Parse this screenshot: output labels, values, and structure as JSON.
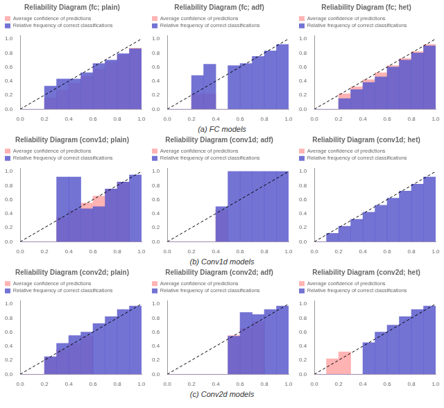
{
  "chart_data": [
    {
      "type": "bar",
      "title": "Reliability Diagram (fc; plain)",
      "bins": [
        0.0,
        0.1,
        0.2,
        0.3,
        0.4,
        0.5,
        0.6,
        0.7,
        0.8,
        0.9,
        1.0
      ],
      "series": [
        {
          "name": "Average confidence of predictions",
          "color": "#ffb3b3",
          "values": [
            0.0,
            0.0,
            0.16,
            0.27,
            0.37,
            0.47,
            0.57,
            0.67,
            0.77,
            0.87
          ]
        },
        {
          "name": "Relative frequency of correct classifications",
          "color": "#5b5bcc",
          "values": [
            0.0,
            0.0,
            0.33,
            0.43,
            0.43,
            0.52,
            0.65,
            0.7,
            0.79,
            0.86
          ]
        }
      ],
      "xlim": [
        0.0,
        1.0
      ],
      "ylim": [
        0.0,
        1.05
      ],
      "xticks": [
        {
          "value": 0.0,
          "label": "0.0"
        },
        0.2,
        0.4,
        0.6,
        0.8,
        {
          "value": 1.0,
          "label": "1.0"
        }
      ],
      "yticks": [
        {
          "value": 0.0,
          "label": "0.0"
        },
        0.2,
        0.4,
        0.6,
        0.8,
        {
          "value": 1.0,
          "label": "1.0"
        }
      ],
      "grid": false,
      "legend": "upper left"
    },
    {
      "type": "bar",
      "title": "Reliability Diagram (fc; adf)",
      "bins": [
        0.0,
        0.1,
        0.2,
        0.3,
        0.4,
        0.5,
        0.6,
        0.7,
        0.8,
        0.9,
        1.0
      ],
      "series": [
        {
          "name": "Average confidence of predictions",
          "color": "#ffb3b3",
          "values": [
            0.0,
            0.0,
            0.22,
            0.22,
            0.0,
            0.0,
            0.0,
            0.0,
            0.0,
            0.0
          ]
        },
        {
          "name": "Relative frequency of correct classifications",
          "color": "#5b5bcc",
          "values": [
            0.0,
            0.0,
            0.48,
            0.64,
            0.0,
            0.62,
            0.65,
            0.75,
            0.83,
            0.92
          ]
        }
      ],
      "xlim": [
        0.0,
        1.0
      ],
      "ylim": [
        0.0,
        1.05
      ],
      "xticks": [
        {
          "value": 0.0,
          "label": "0.0"
        },
        0.2,
        0.4,
        0.6,
        0.8,
        {
          "value": 1.0,
          "label": "1.0"
        }
      ],
      "yticks": [
        {
          "value": 0.0,
          "label": "0.0"
        },
        0.2,
        0.4,
        0.6,
        0.8,
        {
          "value": 1.0,
          "label": "1.0"
        }
      ],
      "grid": false,
      "legend": "upper left",
      "annotation": "(a) FC models"
    },
    {
      "type": "bar",
      "title": "Reliability Diagram (fc; het)",
      "bins": [
        0.0,
        0.1,
        0.2,
        0.3,
        0.4,
        0.5,
        0.6,
        0.7,
        0.8,
        0.9,
        1.0
      ],
      "series": [
        {
          "name": "Average confidence of predictions",
          "color": "#ffb3b3",
          "values": [
            0.0,
            0.0,
            0.22,
            0.32,
            0.42,
            0.52,
            0.62,
            0.72,
            0.82,
            0.92
          ]
        },
        {
          "name": "Relative frequency of correct classifications",
          "color": "#5b5bcc",
          "values": [
            0.0,
            0.0,
            0.15,
            0.28,
            0.38,
            0.46,
            0.6,
            0.7,
            0.8,
            0.9
          ]
        }
      ],
      "xlim": [
        0.0,
        1.0
      ],
      "ylim": [
        0.0,
        1.05
      ],
      "xticks": [
        {
          "value": 0.0,
          "label": "0.0"
        },
        0.2,
        0.4,
        0.6,
        0.8,
        {
          "value": 1.0,
          "label": "1.0"
        }
      ],
      "yticks": [
        {
          "value": 0.0,
          "label": "0.0"
        },
        0.2,
        0.4,
        0.6,
        0.8,
        {
          "value": 1.0,
          "label": "1.0"
        }
      ],
      "grid": false,
      "legend": "upper left"
    },
    {
      "type": "bar",
      "title": "Reliability Diagram (conv1d; plain)",
      "bins": [
        0.0,
        0.1,
        0.2,
        0.3,
        0.4,
        0.5,
        0.6,
        0.7,
        0.8,
        0.9,
        1.0
      ],
      "series": [
        {
          "name": "Average confidence of predictions",
          "color": "#ffb3b3",
          "values": [
            0.0,
            0.0,
            0.0,
            0.35,
            0.45,
            0.55,
            0.65,
            0.75,
            0.85,
            0.0
          ]
        },
        {
          "name": "Relative frequency of correct classifications",
          "color": "#5b5bcc",
          "values": [
            0.0,
            0.0,
            0.0,
            0.92,
            0.92,
            0.47,
            0.5,
            0.75,
            0.85,
            0.95
          ]
        }
      ],
      "xlim": [
        0.0,
        1.0
      ],
      "ylim": [
        0.0,
        1.05
      ],
      "xticks": [
        {
          "value": 0.0,
          "label": "0.0"
        },
        0.2,
        0.4,
        0.6,
        0.8,
        {
          "value": 1.0,
          "label": "1.0"
        }
      ],
      "yticks": [
        {
          "value": 0.0,
          "label": "0.0"
        },
        0.2,
        0.4,
        0.6,
        0.8,
        {
          "value": 1.0,
          "label": "1.0"
        }
      ],
      "grid": false,
      "legend": "upper left"
    },
    {
      "type": "bar",
      "title": "Reliability Diagram (conv1d; adf)",
      "bins": [
        0.0,
        0.1,
        0.2,
        0.3,
        0.4,
        0.5,
        0.6,
        0.7,
        0.8,
        0.9,
        1.0
      ],
      "series": [
        {
          "name": "Average confidence of predictions",
          "color": "#ffb3b3",
          "values": [
            0.0,
            0.0,
            0.0,
            0.0,
            0.45,
            0.0,
            0.0,
            0.0,
            0.0,
            0.0
          ]
        },
        {
          "name": "Relative frequency of correct classifications",
          "color": "#5b5bcc",
          "values": [
            0.0,
            0.0,
            0.0,
            0.0,
            0.5,
            1.0,
            1.0,
            1.0,
            1.0,
            1.0
          ]
        }
      ],
      "xlim": [
        0.0,
        1.0
      ],
      "ylim": [
        0.0,
        1.05
      ],
      "xticks": [
        {
          "value": 0.0,
          "label": "0.0"
        },
        0.2,
        0.4,
        0.6,
        0.8,
        {
          "value": 1.0,
          "label": "1.0"
        }
      ],
      "yticks": [
        {
          "value": 0.0,
          "label": "0.0"
        },
        0.2,
        0.4,
        0.6,
        0.8,
        {
          "value": 1.0,
          "label": "1.0"
        }
      ],
      "grid": false,
      "legend": "upper left",
      "annotation": "(b) Conv1d models"
    },
    {
      "type": "bar",
      "title": "Reliability Diagram (conv1d; het)",
      "bins": [
        0.0,
        0.1,
        0.2,
        0.3,
        0.4,
        0.5,
        0.6,
        0.7,
        0.8,
        0.9,
        1.0
      ],
      "series": [
        {
          "name": "Average confidence of predictions",
          "color": "#ffb3b3",
          "values": [
            0.0,
            0.0,
            0.0,
            0.0,
            0.0,
            0.0,
            0.0,
            0.0,
            0.0,
            0.0
          ]
        },
        {
          "name": "Relative frequency of correct classifications",
          "color": "#5b5bcc",
          "values": [
            0.0,
            0.12,
            0.22,
            0.32,
            0.42,
            0.52,
            0.62,
            0.72,
            0.82,
            0.92
          ]
        }
      ],
      "xlim": [
        0.0,
        1.0
      ],
      "ylim": [
        0.0,
        1.05
      ],
      "xticks": [
        {
          "value": 0.0,
          "label": "0.0"
        },
        0.2,
        0.4,
        0.6,
        0.8,
        {
          "value": 1.0,
          "label": "1.0"
        }
      ],
      "yticks": [
        {
          "value": 0.0,
          "label": "0.0"
        },
        0.2,
        0.4,
        0.6,
        0.8,
        {
          "value": 1.0,
          "label": "1.0"
        }
      ],
      "grid": false,
      "legend": "upper left"
    },
    {
      "type": "bar",
      "title": "Reliability Diagram (conv2d; plain)",
      "bins": [
        0.0,
        0.1,
        0.2,
        0.3,
        0.4,
        0.5,
        0.6,
        0.7,
        0.8,
        0.9,
        1.0
      ],
      "series": [
        {
          "name": "Average confidence of predictions",
          "color": "#ffb3b3",
          "values": [
            0.0,
            0.0,
            0.24,
            0.35,
            0.44,
            0.54,
            0.0,
            0.0,
            0.0,
            0.0
          ]
        },
        {
          "name": "Relative frequency of correct classifications",
          "color": "#5b5bcc",
          "values": [
            0.0,
            0.0,
            0.25,
            0.44,
            0.55,
            0.6,
            0.72,
            0.82,
            0.92,
            0.97
          ]
        }
      ],
      "xlim": [
        0.0,
        1.0
      ],
      "ylim": [
        0.0,
        1.05
      ],
      "xticks": [
        {
          "value": 0.0,
          "label": "0.0"
        },
        0.2,
        0.4,
        0.6,
        0.8,
        {
          "value": 1.0,
          "label": "1.0"
        }
      ],
      "yticks": [
        {
          "value": 0.0,
          "label": "0.0"
        },
        0.2,
        0.4,
        0.6,
        0.8,
        {
          "value": 1.0,
          "label": "1.0"
        }
      ],
      "grid": false,
      "legend": "upper left"
    },
    {
      "type": "bar",
      "title": "Reliability Diagram (conv2d; adf)",
      "bins": [
        0.0,
        0.1,
        0.2,
        0.3,
        0.4,
        0.5,
        0.6,
        0.7,
        0.8,
        0.9,
        1.0
      ],
      "series": [
        {
          "name": "Average confidence of predictions",
          "color": "#ffb3b3",
          "values": [
            0.0,
            0.0,
            0.0,
            0.0,
            0.0,
            0.55,
            0.65,
            0.75,
            0.0,
            0.0
          ]
        },
        {
          "name": "Relative frequency of correct classifications",
          "color": "#5b5bcc",
          "values": [
            0.0,
            0.0,
            0.0,
            0.0,
            0.0,
            0.54,
            0.88,
            0.85,
            0.92,
            0.97
          ]
        }
      ],
      "xlim": [
        0.0,
        1.0
      ],
      "ylim": [
        0.0,
        1.05
      ],
      "xticks": [
        {
          "value": 0.0,
          "label": "0.0"
        },
        0.2,
        0.4,
        0.6,
        0.8,
        {
          "value": 1.0,
          "label": "1.0"
        }
      ],
      "yticks": [
        {
          "value": 0.0,
          "label": "0.0"
        },
        0.2,
        0.4,
        0.6,
        0.8,
        {
          "value": 1.0,
          "label": "1.0"
        }
      ],
      "grid": false,
      "legend": "upper left",
      "annotation": "(c) Conv2d models"
    },
    {
      "type": "bar",
      "title": "Reliability Diagram (conv2d; het)",
      "bins": [
        0.0,
        0.1,
        0.2,
        0.3,
        0.4,
        0.5,
        0.6,
        0.7,
        0.8,
        0.9,
        1.0
      ],
      "series": [
        {
          "name": "Average confidence of predictions",
          "color": "#ffb3b3",
          "values": [
            0.0,
            0.22,
            0.32,
            0.0,
            0.0,
            0.0,
            0.0,
            0.0,
            0.0,
            0.0
          ]
        },
        {
          "name": "Relative frequency of correct classifications",
          "color": "#5b5bcc",
          "values": [
            0.0,
            0.0,
            0.0,
            0.0,
            0.45,
            0.6,
            0.7,
            0.82,
            0.92,
            0.97
          ]
        }
      ],
      "xlim": [
        0.0,
        1.0
      ],
      "ylim": [
        0.0,
        1.05
      ],
      "xticks": [
        {
          "value": 0.0,
          "label": "0.0"
        },
        0.2,
        0.4,
        0.6,
        0.8,
        {
          "value": 1.0,
          "label": "1.0"
        }
      ],
      "yticks": [
        {
          "value": 0.0,
          "label": "0.0"
        },
        0.2,
        0.4,
        0.6,
        0.8,
        {
          "value": 1.0,
          "label": "1.0"
        }
      ],
      "grid": false,
      "legend": "upper left"
    }
  ]
}
